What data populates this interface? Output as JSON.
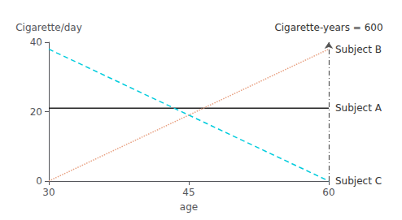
{
  "chart_data": {
    "type": "line",
    "xlabel": "age",
    "ylabel": "Cigarette/day",
    "xlim": [
      30,
      60
    ],
    "xticks": [
      30,
      45,
      60
    ],
    "ylim": [
      0,
      40
    ],
    "yticks": [
      0,
      20,
      40
    ],
    "grid": false,
    "series": [
      {
        "name": "Subject A",
        "color": "#222222",
        "line_style": "solid",
        "x": [
          30,
          60
        ],
        "values": [
          21,
          21
        ]
      },
      {
        "name": "Subject B",
        "color": "#e8a080",
        "line_style": "dotted",
        "x": [
          30,
          60
        ],
        "values": [
          0,
          38
        ]
      },
      {
        "name": "Subject C",
        "color": "#00ccdd",
        "line_style": "dashed",
        "x": [
          30,
          60
        ],
        "values": [
          38,
          0
        ]
      }
    ],
    "vline": {
      "x": 60,
      "ymin": 0,
      "ymax": 40,
      "color": "#555555",
      "line_style": "dashdot",
      "label": "Cigarette-years = 600"
    }
  }
}
